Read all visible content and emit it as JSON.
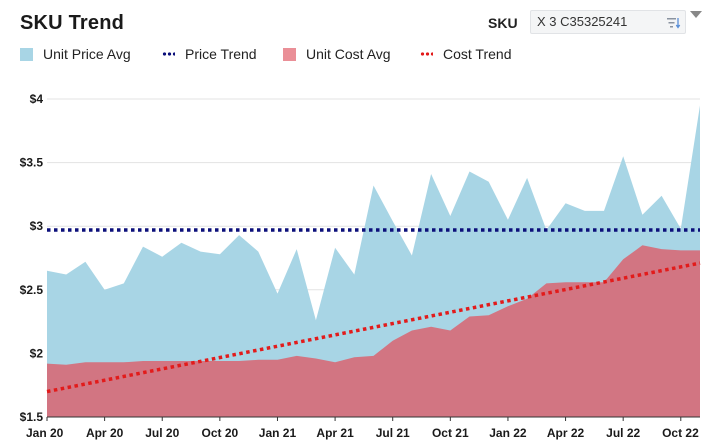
{
  "header": {
    "title": "SKU Trend",
    "sku_label": "SKU",
    "sku_value": "X 3 C35325241"
  },
  "icons": {
    "filter": "filter-sort-icon",
    "menu": "caret-down-icon"
  },
  "colors": {
    "unit_price_fill": "#a8d5e5",
    "unit_cost_fill": "#d27582",
    "price_trend": "#0b0f7a",
    "cost_trend": "#e21b1b",
    "cost_legend": "#ea8f97"
  },
  "legend": [
    {
      "label": "Unit Price Avg",
      "style": "swatch",
      "color": "#a8d5e5"
    },
    {
      "label": "Price Trend",
      "style": "dots",
      "color": "#0b0f7a"
    },
    {
      "label": "Unit Cost Avg",
      "style": "swatch",
      "color": "#ea8f97"
    },
    {
      "label": "Cost Trend",
      "style": "dots",
      "color": "#e21b1b"
    }
  ],
  "chart_data": {
    "type": "area",
    "x": [
      "Jan 20",
      "Feb 20",
      "Mar 20",
      "Apr 20",
      "May 20",
      "Jun 20",
      "Jul 20",
      "Aug 20",
      "Sep 20",
      "Oct 20",
      "Nov 20",
      "Dec 20",
      "Jan 21",
      "Feb 21",
      "Mar 21",
      "Apr 21",
      "May 21",
      "Jun 21",
      "Jul 21",
      "Aug 21",
      "Sep 21",
      "Oct 21",
      "Nov 21",
      "Dec 21",
      "Jan 22",
      "Feb 22",
      "Mar 22",
      "Apr 22",
      "May 22",
      "Jun 22",
      "Jul 22",
      "Aug 22",
      "Sep 22",
      "Oct 22",
      "Nov 22"
    ],
    "x_tick_labels": [
      "Jan 20",
      "Apr 20",
      "Jul 20",
      "Oct 20",
      "Jan 21",
      "Apr 21",
      "Jul 21",
      "Oct 21",
      "Jan 22",
      "Apr 22",
      "Jul 22",
      "Oct 22"
    ],
    "y_tick_labels": [
      "$1.5",
      "$2",
      "$2.5",
      "$3",
      "$3.5",
      "$4"
    ],
    "ylim": [
      1.5,
      4.0
    ],
    "series": [
      {
        "name": "Unit Price Avg",
        "kind": "area",
        "values": [
          2.65,
          2.62,
          2.72,
          2.5,
          2.55,
          2.84,
          2.76,
          2.87,
          2.8,
          2.78,
          2.93,
          2.8,
          2.47,
          2.82,
          2.26,
          2.83,
          2.62,
          3.32,
          3.04,
          2.77,
          3.41,
          3.08,
          3.43,
          3.35,
          3.05,
          3.38,
          2.97,
          3.18,
          3.12,
          3.12,
          3.55,
          3.09,
          3.24,
          2.98,
          3.95
        ]
      },
      {
        "name": "Unit Cost Avg",
        "kind": "area",
        "values": [
          1.92,
          1.91,
          1.93,
          1.93,
          1.93,
          1.94,
          1.94,
          1.94,
          1.94,
          1.94,
          1.94,
          1.95,
          1.95,
          1.98,
          1.96,
          1.93,
          1.97,
          1.98,
          2.1,
          2.18,
          2.21,
          2.18,
          2.29,
          2.3,
          2.37,
          2.43,
          2.55,
          2.56,
          2.56,
          2.56,
          2.74,
          2.85,
          2.82,
          2.81,
          2.81
        ]
      },
      {
        "name": "Price Trend",
        "kind": "line",
        "values_start_end": [
          2.97,
          2.97
        ]
      },
      {
        "name": "Cost Trend",
        "kind": "line",
        "values_start_end": [
          1.7,
          2.71
        ]
      }
    ],
    "grid": true,
    "legend_position": "top-left"
  }
}
